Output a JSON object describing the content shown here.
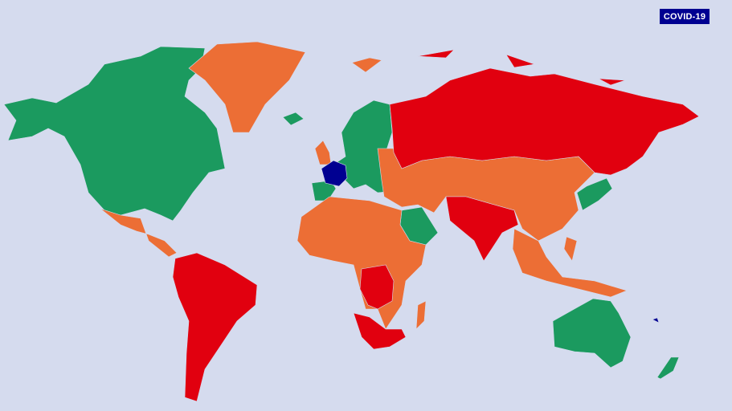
{
  "badge": {
    "label": "COVID-19"
  },
  "colors": {
    "background": "#d5dbee",
    "green": "#1b9a5f",
    "orange": "#ec6e35",
    "red": "#e1000f",
    "france": "#000091"
  },
  "legend_categories": [
    "green",
    "orange",
    "red",
    "france"
  ]
}
